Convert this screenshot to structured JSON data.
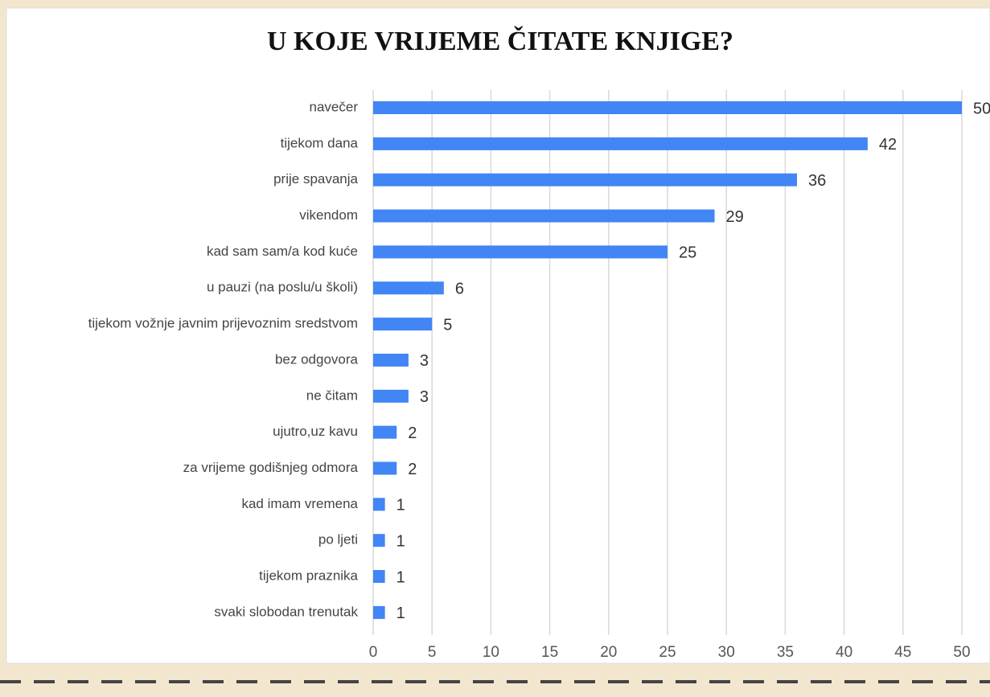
{
  "chart_data": {
    "type": "bar",
    "orientation": "horizontal",
    "title": "U KOJE VRIJEME ČITATE KNJIGE?",
    "categories": [
      "navečer",
      "tijekom dana",
      "prije spavanja",
      "vikendom",
      "kad sam sam/a kod kuće",
      "u pauzi (na poslu/u školi)",
      "tijekom vožnje javnim prijevoznim sredstvom",
      "bez odgovora",
      "ne čitam",
      "ujutro,uz kavu",
      "za vrijeme godišnjeg odmora",
      "kad imam vremena",
      "po ljeti",
      "tijekom praznika",
      "svaki slobodan trenutak"
    ],
    "values": [
      50,
      42,
      36,
      29,
      25,
      6,
      5,
      3,
      3,
      2,
      2,
      1,
      1,
      1,
      1
    ],
    "color": "#4285f4",
    "xlim": [
      0,
      50
    ],
    "xticks": [
      0,
      5,
      10,
      15,
      20,
      25,
      30,
      35,
      40,
      45,
      50
    ],
    "grid": true
  }
}
